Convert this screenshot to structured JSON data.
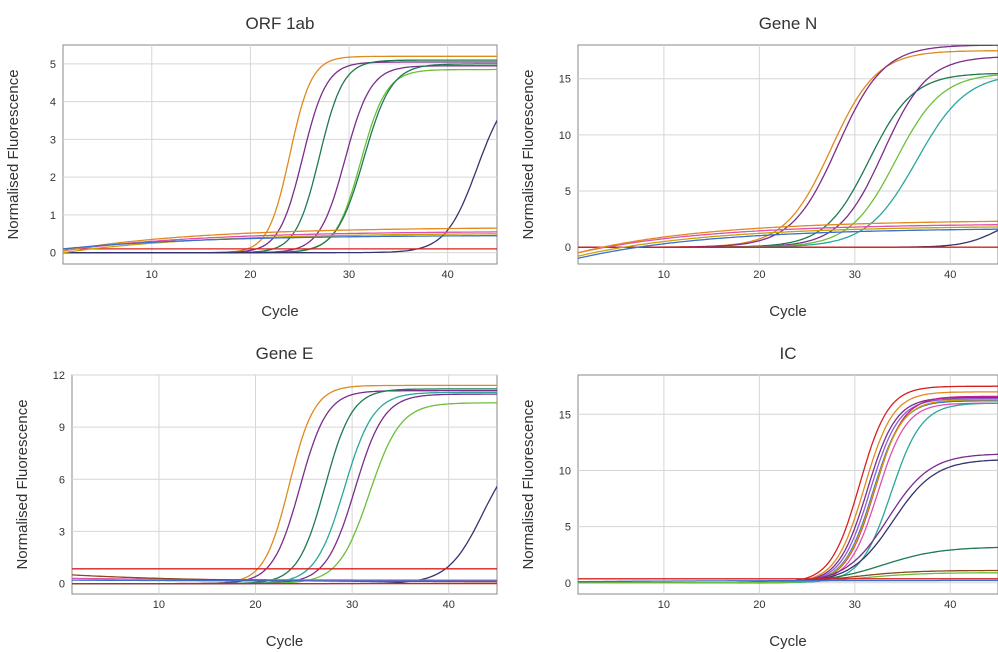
{
  "colors": {
    "orange": "#e08a1e",
    "purple": "#7b2d8b",
    "darkgreen": "#1d7a4f",
    "green": "#6cbf3a",
    "teal": "#2aa79b",
    "navy": "#34346e",
    "red": "#d62020",
    "pink": "#e04fb0",
    "gold": "#c6a400",
    "blue": "#3a6fd0",
    "violet": "#8e5bd6",
    "brown": "#8a4a1a",
    "magenta": "#c41f8a"
  },
  "chart_data": [
    {
      "type": "line",
      "title": "ORF 1ab",
      "xlabel": "Cycle",
      "ylabel": "Normalised Fluorescence",
      "xlim": [
        1,
        45
      ],
      "ylim": [
        -0.3,
        5.5
      ],
      "xticks": [
        10,
        20,
        30,
        40
      ],
      "yticks": [
        0,
        1,
        2,
        3,
        4,
        5
      ],
      "grid": true,
      "legend": "none",
      "series": [
        {
          "color": "orange",
          "curve": {
            "type": "sigmoid",
            "plateau": 5.2,
            "ct": 24.0,
            "slope": 1.1,
            "baseline": 0.0
          }
        },
        {
          "color": "purple",
          "curve": {
            "type": "sigmoid",
            "plateau": 5.05,
            "ct": 25.3,
            "slope": 1.2,
            "baseline": 0.0
          }
        },
        {
          "color": "darkgreen",
          "curve": {
            "type": "sigmoid",
            "plateau": 5.1,
            "ct": 27.0,
            "slope": 1.2,
            "baseline": 0.0
          }
        },
        {
          "color": "purple",
          "curve": {
            "type": "sigmoid",
            "plateau": 4.95,
            "ct": 29.6,
            "slope": 1.3,
            "baseline": 0.0
          }
        },
        {
          "color": "green",
          "curve": {
            "type": "sigmoid",
            "plateau": 4.85,
            "ct": 31.2,
            "slope": 1.3,
            "baseline": 0.0
          }
        },
        {
          "color": "darkgreen",
          "curve": {
            "type": "sigmoid",
            "plateau": 5.0,
            "ct": 31.5,
            "slope": 1.4,
            "baseline": 0.0
          }
        },
        {
          "color": "navy",
          "curve": {
            "type": "sigmoid",
            "plateau": 4.5,
            "ct": 43.0,
            "slope": 1.6,
            "baseline": 0.0
          }
        },
        {
          "color": "red",
          "curve": {
            "type": "flat",
            "y0": 0.1,
            "y1": 0.1
          }
        },
        {
          "color": "pink",
          "curve": {
            "type": "drift",
            "y0": 0.05,
            "y1": 0.55
          }
        },
        {
          "color": "orange",
          "curve": {
            "type": "drift",
            "y0": 0.05,
            "y1": 0.65
          }
        },
        {
          "color": "gold",
          "curve": {
            "type": "drift",
            "y0": 0.0,
            "y1": 0.5
          }
        },
        {
          "color": "blue",
          "curve": {
            "type": "drift",
            "y0": 0.1,
            "y1": 0.45
          }
        }
      ]
    },
    {
      "type": "line",
      "title": "Gene N",
      "xlabel": "Cycle",
      "ylabel": "Normalised Fluorescence",
      "xlim": [
        1,
        45
      ],
      "ylim": [
        -1.5,
        18
      ],
      "xticks": [
        10,
        20,
        30,
        40
      ],
      "yticks": [
        0,
        5,
        10,
        15
      ],
      "grid": true,
      "legend": "none",
      "series": [
        {
          "color": "orange",
          "curve": {
            "type": "sigmoid",
            "plateau": 17.5,
            "ct": 27.5,
            "slope": 2.4,
            "baseline": 0.0
          }
        },
        {
          "color": "purple",
          "curve": {
            "type": "sigmoid",
            "plateau": 18.0,
            "ct": 28.2,
            "slope": 2.4,
            "baseline": 0.0
          }
        },
        {
          "color": "darkgreen",
          "curve": {
            "type": "sigmoid",
            "plateau": 15.5,
            "ct": 31.5,
            "slope": 2.3,
            "baseline": 0.0
          }
        },
        {
          "color": "purple",
          "curve": {
            "type": "sigmoid",
            "plateau": 17.0,
            "ct": 33.0,
            "slope": 2.3,
            "baseline": 0.0
          }
        },
        {
          "color": "green",
          "curve": {
            "type": "sigmoid",
            "plateau": 15.5,
            "ct": 34.3,
            "slope": 2.4,
            "baseline": 0.0
          }
        },
        {
          "color": "teal",
          "curve": {
            "type": "sigmoid",
            "plateau": 15.5,
            "ct": 36.5,
            "slope": 2.6,
            "baseline": 0.0
          }
        },
        {
          "color": "navy",
          "curve": {
            "type": "sigmoid",
            "plateau": 3.0,
            "ct": 45.0,
            "slope": 1.8,
            "baseline": 0.0
          }
        },
        {
          "color": "red",
          "curve": {
            "type": "flat",
            "y0": 0.0,
            "y1": 0.0
          }
        },
        {
          "color": "pink",
          "curve": {
            "type": "drift",
            "y0": -0.5,
            "y1": 2.0
          }
        },
        {
          "color": "orange",
          "curve": {
            "type": "drift",
            "y0": -0.5,
            "y1": 2.3
          }
        },
        {
          "color": "gold",
          "curve": {
            "type": "drift",
            "y0": -0.8,
            "y1": 1.8
          }
        },
        {
          "color": "blue",
          "curve": {
            "type": "drift",
            "y0": -1.0,
            "y1": 1.6
          }
        }
      ]
    },
    {
      "type": "line",
      "title": "Gene E",
      "xlabel": "Cycle",
      "ylabel": "Normalised Fluorescence",
      "xlim": [
        1,
        45
      ],
      "ylim": [
        -0.6,
        12
      ],
      "xticks": [
        10,
        20,
        30,
        40
      ],
      "yticks": [
        0,
        3,
        6,
        9,
        12
      ],
      "grid": true,
      "legend": "none",
      "series": [
        {
          "color": "orange",
          "curve": {
            "type": "sigmoid",
            "plateau": 11.4,
            "ct": 23.5,
            "slope": 1.3,
            "baseline": 0.0
          }
        },
        {
          "color": "purple",
          "curve": {
            "type": "sigmoid",
            "plateau": 11.1,
            "ct": 24.6,
            "slope": 1.4,
            "baseline": 0.0
          }
        },
        {
          "color": "darkgreen",
          "curve": {
            "type": "sigmoid",
            "plateau": 11.2,
            "ct": 27.2,
            "slope": 1.4,
            "baseline": 0.0
          }
        },
        {
          "color": "teal",
          "curve": {
            "type": "sigmoid",
            "plateau": 11.0,
            "ct": 29.2,
            "slope": 1.5,
            "baseline": 0.0
          }
        },
        {
          "color": "purple",
          "curve": {
            "type": "sigmoid",
            "plateau": 10.9,
            "ct": 30.3,
            "slope": 1.5,
            "baseline": 0.0
          }
        },
        {
          "color": "green",
          "curve": {
            "type": "sigmoid",
            "plateau": 10.4,
            "ct": 31.8,
            "slope": 1.6,
            "baseline": 0.0
          }
        },
        {
          "color": "navy",
          "curve": {
            "type": "sigmoid",
            "plateau": 8.0,
            "ct": 43.5,
            "slope": 1.8,
            "baseline": 0.0
          }
        },
        {
          "color": "red",
          "curve": {
            "type": "flat",
            "y0": 0.85,
            "y1": 0.85
          }
        },
        {
          "color": "red",
          "curve": {
            "type": "flat",
            "y0": 0.0,
            "y1": 0.0
          }
        },
        {
          "color": "pink",
          "curve": {
            "type": "drift",
            "y0": 0.3,
            "y1": 0.2
          }
        },
        {
          "color": "brown",
          "curve": {
            "type": "drift",
            "y0": 0.5,
            "y1": 0.1
          }
        },
        {
          "color": "blue",
          "curve": {
            "type": "drift",
            "y0": 0.2,
            "y1": 0.15
          }
        }
      ]
    },
    {
      "type": "line",
      "title": "IC",
      "xlabel": "Cycle",
      "ylabel": "Normalised Fluorescence",
      "xlim": [
        1,
        45
      ],
      "ylim": [
        -1,
        18.5
      ],
      "xticks": [
        10,
        20,
        30,
        40
      ],
      "yticks": [
        0,
        5,
        10,
        15
      ],
      "grid": true,
      "legend": "none",
      "series": [
        {
          "color": "red",
          "curve": {
            "type": "sigmoid",
            "plateau": 17.5,
            "ct": 30.5,
            "slope": 1.5,
            "baseline": 0.0
          }
        },
        {
          "color": "orange",
          "curve": {
            "type": "sigmoid",
            "plateau": 17.0,
            "ct": 31.0,
            "slope": 1.5,
            "baseline": 0.0
          }
        },
        {
          "color": "purple",
          "curve": {
            "type": "sigmoid",
            "plateau": 16.5,
            "ct": 31.3,
            "slope": 1.5,
            "baseline": 0.0
          }
        },
        {
          "color": "violet",
          "curve": {
            "type": "sigmoid",
            "plateau": 16.4,
            "ct": 31.6,
            "slope": 1.5,
            "baseline": 0.0
          }
        },
        {
          "color": "blue",
          "curve": {
            "type": "sigmoid",
            "plateau": 16.2,
            "ct": 31.9,
            "slope": 1.5,
            "baseline": 0.0
          }
        },
        {
          "color": "magenta",
          "curve": {
            "type": "sigmoid",
            "plateau": 16.6,
            "ct": 32.1,
            "slope": 1.5,
            "baseline": 0.0
          }
        },
        {
          "color": "pink",
          "curve": {
            "type": "sigmoid",
            "plateau": 16.0,
            "ct": 32.4,
            "slope": 1.5,
            "baseline": 0.0
          }
        },
        {
          "color": "gold",
          "curve": {
            "type": "sigmoid",
            "plateau": 16.3,
            "ct": 32.0,
            "slope": 1.5,
            "baseline": 0.0
          }
        },
        {
          "color": "teal",
          "curve": {
            "type": "sigmoid",
            "plateau": 16.0,
            "ct": 33.8,
            "slope": 1.6,
            "baseline": 0.0
          }
        },
        {
          "color": "purple",
          "curve": {
            "type": "sigmoid",
            "plateau": 11.5,
            "ct": 33.5,
            "slope": 2.2,
            "baseline": 0.0
          }
        },
        {
          "color": "navy",
          "curve": {
            "type": "sigmoid",
            "plateau": 11.0,
            "ct": 34.0,
            "slope": 2.2,
            "baseline": 0.0
          }
        },
        {
          "color": "darkgreen",
          "curve": {
            "type": "sigmoid",
            "plateau": 3.2,
            "ct": 33.0,
            "slope": 3.0,
            "baseline": 0.0
          }
        },
        {
          "color": "brown",
          "curve": {
            "type": "sigmoid",
            "plateau": 1.1,
            "ct": 30.0,
            "slope": 3.0,
            "baseline": 0.0
          }
        },
        {
          "color": "green",
          "curve": {
            "type": "sigmoid",
            "plateau": 0.9,
            "ct": 31.0,
            "slope": 3.0,
            "baseline": 0.0
          }
        },
        {
          "color": "red",
          "curve": {
            "type": "flat",
            "y0": 0.35,
            "y1": 0.35
          }
        },
        {
          "color": "blue",
          "curve": {
            "type": "drift",
            "y0": 0.1,
            "y1": 0.2
          }
        }
      ]
    }
  ]
}
